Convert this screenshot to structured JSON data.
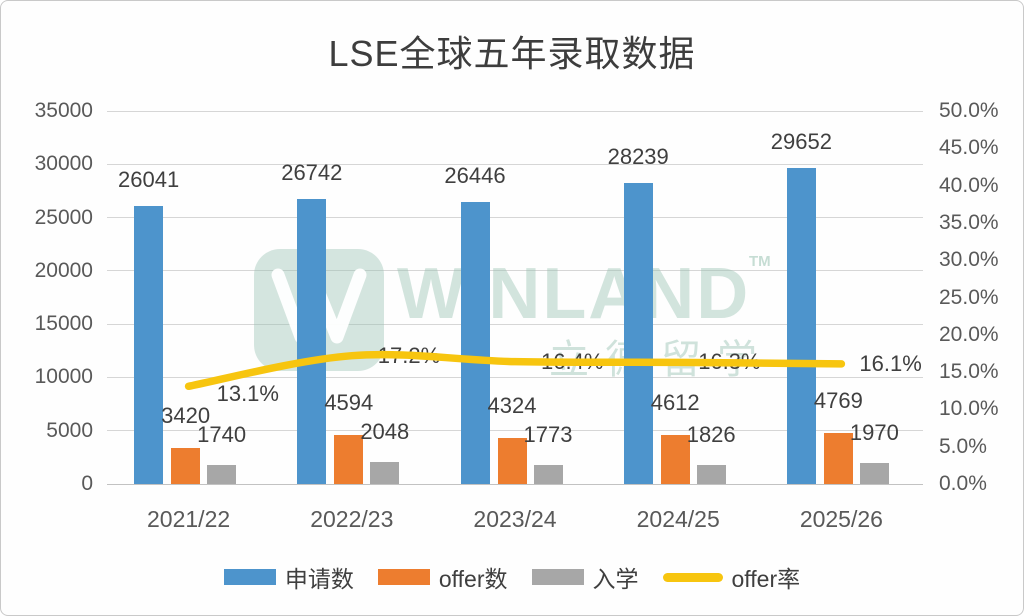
{
  "title": "LSE全球五年录取数据",
  "watermark": {
    "brand": "WiNLAND",
    "tm": "TM",
    "subtext": "立德留学"
  },
  "colors": {
    "bar_blue": "#4D94CC",
    "bar_orange": "#ED7D2F",
    "bar_gray": "#A7A7A7",
    "line_yellow": "#F7C50F",
    "grid": "#D6D6D6",
    "axis_text": "#595959",
    "label_text": "#3F3F3F",
    "watermark_teal": "#97C1B1"
  },
  "chart_data": {
    "type": "bar",
    "subtype": "clustered-bars-with-line",
    "title": "LSE全球五年录取数据",
    "categories": [
      "2021/22",
      "2022/23",
      "2023/24",
      "2024/25",
      "2025/26"
    ],
    "series": [
      {
        "key": "applications",
        "name": "申请数",
        "type": "bar",
        "axis": "left",
        "color": "#4D94CC",
        "values": [
          26041,
          26742,
          26446,
          28239,
          29652
        ]
      },
      {
        "key": "offers",
        "name": "offer数",
        "type": "bar",
        "axis": "left",
        "color": "#ED7D2F",
        "values": [
          3420,
          4594,
          4324,
          4612,
          4769
        ]
      },
      {
        "key": "enrolled",
        "name": "入学",
        "type": "bar",
        "axis": "left",
        "color": "#A7A7A7",
        "values": [
          1740,
          2048,
          1773,
          1826,
          1970
        ]
      },
      {
        "key": "offer-rate",
        "name": "offer率",
        "type": "line",
        "axis": "right",
        "color": "#F7C50F",
        "values": [
          13.1,
          17.2,
          16.4,
          16.3,
          16.1
        ],
        "point_labels": [
          "13.1%",
          "17.2%",
          "16.4%",
          "16.3%",
          "16.1%"
        ]
      }
    ],
    "left_axis": {
      "min": 0,
      "max": 35000,
      "step": 5000,
      "ticks": [
        "35000",
        "30000",
        "25000",
        "20000",
        "15000",
        "10000",
        "5000",
        "0"
      ]
    },
    "right_axis": {
      "min": 0,
      "max": 50,
      "step": 5,
      "ticks": [
        "50.0%",
        "45.0%",
        "40.0%",
        "35.0%",
        "30.0%",
        "25.0%",
        "20.0%",
        "15.0%",
        "10.0%",
        "5.0%",
        "0.0%"
      ]
    },
    "grid": true,
    "legend_position": "bottom"
  }
}
